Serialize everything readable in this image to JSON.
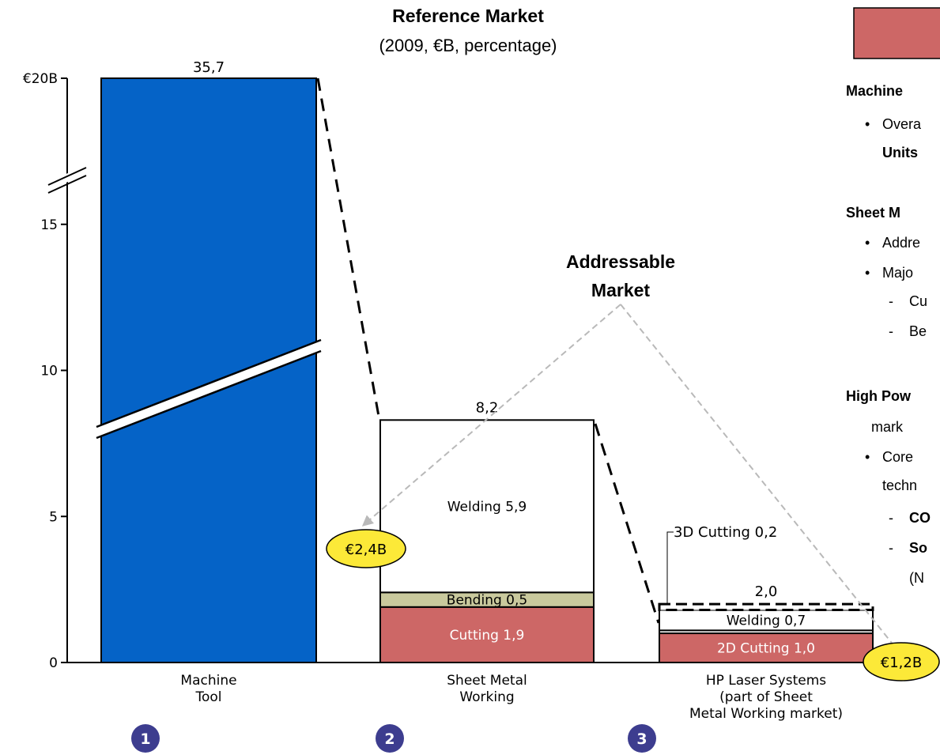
{
  "chart_data": {
    "type": "bar",
    "title": "Reference Market",
    "subtitle": "(2009, €B, percentage)",
    "ylim": [
      0,
      20
    ],
    "y_ticks": [
      "0",
      "5",
      "10",
      "15",
      "€20B"
    ],
    "y_tick_values": [
      0,
      5,
      10,
      15,
      20
    ],
    "y_axis_break": true,
    "categories": [
      "Machine Tool",
      "Sheet Metal Working",
      "HP Laser Systems (part of Sheet Metal Working market)"
    ],
    "category_lines": [
      [
        "Machine",
        "Tool"
      ],
      [
        "Sheet Metal",
        "Working"
      ],
      [
        "HP Laser Systems",
        "(part of Sheet",
        "Metal Working market)"
      ]
    ],
    "bars": [
      {
        "category": "Machine Tool",
        "total_label": "35,7",
        "total": 35.7,
        "broken": true,
        "segments": [
          {
            "label": "",
            "value": 35.7,
            "color": "#0563c7"
          }
        ]
      },
      {
        "category": "Sheet Metal Working",
        "total_label": "8,2",
        "total": 8.2,
        "segments": [
          {
            "label": "Cutting 1,9",
            "value": 1.9,
            "color": "#cd6766"
          },
          {
            "label": "Bending 0,5",
            "value": 0.5,
            "color": "#c9c99d"
          },
          {
            "label": "Welding 5,9",
            "value": 5.9,
            "color": "#ffffff"
          }
        ]
      },
      {
        "category": "HP Laser Systems",
        "total_label": "2,0",
        "total": 2.0,
        "segments": [
          {
            "label": "2D Cutting 1,0",
            "value": 1.0,
            "color": "#cd6766"
          },
          {
            "label": "",
            "value": 0.1,
            "color": "#ffffff"
          },
          {
            "label": "Welding 0,7",
            "value": 0.7,
            "color": "#ffffff"
          },
          {
            "label": "3D Cutting 0,2",
            "value": 0.2,
            "color": "#ffffff",
            "dashed": true
          }
        ]
      }
    ],
    "annotations": {
      "addressable_market": [
        "Addressable",
        "Market"
      ],
      "badges": [
        "€2,4B",
        "€1,2B"
      ],
      "step_numbers": [
        "1",
        "2",
        "3"
      ]
    }
  },
  "side_panel": {
    "headings": [
      "Machine",
      "Sheet M",
      "High Pow"
    ],
    "lines": [
      "Overa",
      "Units",
      "Addre",
      "Majo",
      "Cu",
      "Be",
      "mark",
      "Core",
      "techn",
      "CO",
      "So",
      "(N"
    ]
  },
  "colors": {
    "blue": "#0563c7",
    "red": "#cd6766",
    "khaki": "#c9c99d",
    "badge": "#fce938",
    "step_circle": "#3d3d8f",
    "legend_swatch": "#cd6766"
  }
}
